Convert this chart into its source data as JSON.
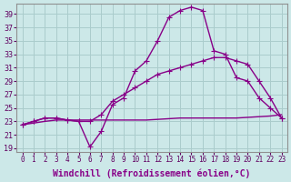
{
  "xlabel": "Windchill (Refroidissement éolien,°C)",
  "ylabel": "",
  "background_color": "#cce8e8",
  "grid_color": "#aacccc",
  "line_color": "#880088",
  "xlim": [
    -0.5,
    23.5
  ],
  "ylim": [
    18.5,
    40.5
  ],
  "xticks": [
    0,
    1,
    2,
    3,
    4,
    5,
    6,
    7,
    8,
    9,
    10,
    11,
    12,
    13,
    14,
    15,
    16,
    17,
    18,
    19,
    20,
    21,
    22,
    23
  ],
  "yticks": [
    19,
    21,
    23,
    25,
    27,
    29,
    31,
    33,
    35,
    37,
    39
  ],
  "line1_x": [
    0,
    1,
    2,
    3,
    4,
    5,
    6,
    7,
    8,
    9,
    10,
    11,
    12,
    13,
    14,
    15,
    16,
    17,
    18,
    19,
    20,
    21,
    22,
    23
  ],
  "line1_y": [
    22.5,
    23.0,
    23.5,
    23.5,
    23.2,
    23.0,
    19.2,
    21.5,
    25.5,
    26.5,
    30.5,
    32.0,
    35.0,
    38.5,
    39.5,
    40.0,
    39.5,
    33.5,
    33.0,
    29.5,
    29.0,
    26.5,
    25.0,
    23.5
  ],
  "line2_x": [
    0,
    1,
    2,
    3,
    4,
    5,
    6,
    7,
    8,
    9,
    10,
    11,
    12,
    13,
    14,
    15,
    16,
    17,
    18,
    19,
    20,
    21,
    22,
    23
  ],
  "line2_y": [
    22.5,
    23.0,
    23.5,
    23.5,
    23.2,
    23.0,
    23.0,
    24.0,
    26.0,
    27.0,
    28.0,
    29.0,
    30.0,
    30.5,
    31.0,
    31.5,
    32.0,
    32.5,
    32.5,
    32.0,
    31.5,
    29.0,
    26.5,
    23.5
  ],
  "line3_x": [
    0,
    2,
    3,
    6,
    8,
    9,
    10,
    11,
    12,
    13,
    14,
    15,
    16,
    17,
    18,
    19,
    20,
    21,
    22,
    23
  ],
  "line3_y": [
    22.5,
    23.0,
    23.2,
    23.2,
    23.2,
    23.2,
    23.2,
    23.2,
    23.3,
    23.4,
    23.5,
    23.5,
    23.5,
    23.5,
    23.5,
    23.5,
    23.6,
    23.7,
    23.8,
    24.0
  ],
  "marker": "+",
  "markersize": 4,
  "linewidth": 1.0,
  "tick_fontsize": 6,
  "label_fontsize": 7
}
